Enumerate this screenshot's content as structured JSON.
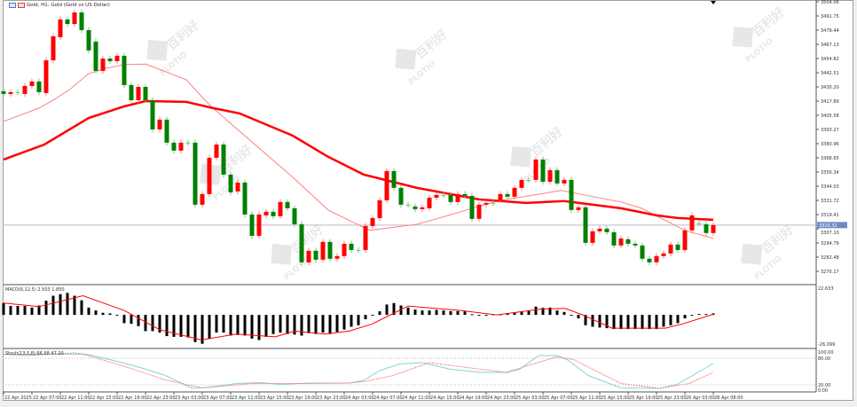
{
  "window": {
    "title": "Gold, H1: Gold (Gold vs US Dollar)",
    "icons": [
      "chart-window-icon",
      "chart-type-icon"
    ]
  },
  "watermark": {
    "brand": "PLOTIO",
    "cn": "百利好"
  },
  "colors": {
    "up": "#ff0000",
    "down": "#008000",
    "ma_fast": "#ff8080",
    "ma_slow": "#ff0000",
    "macd_signal": "#ff0000",
    "stoch_main": "#7fd6d6",
    "stoch_signal": "#ff8080",
    "current_price_bg": "#6f8bc4"
  },
  "price_axis": {
    "labels": [
      "3504.06",
      "3491.75",
      "3479.44",
      "3467.13",
      "3454.82",
      "3442.51",
      "3430.20",
      "3417.89",
      "3405.58",
      "3393.27",
      "3380.96",
      "3368.65",
      "3356.34",
      "3344.03",
      "3331.72",
      "3319.41",
      "3307.10",
      "3294.79",
      "3282.48",
      "3270.17"
    ],
    "current_price": "3310.32"
  },
  "macd": {
    "label": "MACD(6,12,5) 2.503 1.850",
    "axis_top": "22.633",
    "axis_bottom": "-26.099"
  },
  "stoch": {
    "label": "Stoch(13,5,8) 66.68 47.20",
    "axis": [
      "100.00",
      "80.00",
      "20.00",
      "0.00"
    ]
  },
  "time_axis": [
    "22 Apr 2025",
    "22 Apr 07:00",
    "22 Apr 11:00",
    "22 Apr 15:00",
    "22 Apr 19:00",
    "22 Apr 23:00",
    "23 Apr 03:00",
    "23 Apr 07:00",
    "23 Apr 11:00",
    "23 Apr 15:00",
    "23 Apr 19:00",
    "23 Apr 23:00",
    "24 Apr 03:00",
    "24 Apr 07:00",
    "24 Apr 11:00",
    "24 Apr 15:00",
    "24 Apr 19:00",
    "24 Apr 23:00",
    "25 Apr 03:00",
    "25 Apr 07:00",
    "25 Apr 11:00",
    "25 Apr 15:00",
    "25 Apr 19:00",
    "25 Apr 23:00",
    "26 Apr 03:00",
    "28 Apr 08:00"
  ],
  "chart_data": {
    "type": "candlestick",
    "title": "Gold, H1",
    "ylim": [
      3266.5,
      3505.6
    ],
    "candles_open_close": [
      [
        3426.4,
        3424.1
      ],
      [
        3424.1,
        3425.6
      ],
      [
        3425.6,
        3425.6
      ],
      [
        3424.1,
        3431.0
      ],
      [
        3431.0,
        3434.9
      ],
      [
        3434.9,
        3425.6
      ],
      [
        3424.9,
        3453.3
      ],
      [
        3453.3,
        3474.1
      ],
      [
        3473.3,
        3488.7
      ],
      [
        3488.7,
        3484.8
      ],
      [
        3484.8,
        3494.8
      ],
      [
        3494.8,
        3479.5
      ],
      [
        3479.5,
        3461.8
      ],
      [
        3469.5,
        3444.1
      ],
      [
        3444.1,
        3454.8
      ],
      [
        3454.8,
        3452.5
      ],
      [
        3452.5,
        3457.2
      ],
      [
        3457.2,
        3431.8
      ],
      [
        3431.8,
        3418.7
      ],
      [
        3418.7,
        3430.2
      ],
      [
        3430.2,
        3418.7
      ],
      [
        3418.7,
        3393.3
      ],
      [
        3393.3,
        3401.8
      ],
      [
        3401.8,
        3381.8
      ],
      [
        3381.8,
        3374.9
      ],
      [
        3374.9,
        3381.8
      ],
      [
        3381.8,
        3381.8
      ],
      [
        3381.8,
        3328.0
      ],
      [
        3328.0,
        3337.2
      ],
      [
        3337.2,
        3368.7
      ],
      [
        3368.7,
        3380.2
      ],
      [
        3380.2,
        3354.1
      ],
      [
        3354.1,
        3338.7
      ],
      [
        3339.5,
        3347.2
      ],
      [
        3347.2,
        3319.5
      ],
      [
        3319.5,
        3301.0
      ],
      [
        3301.0,
        3319.5
      ],
      [
        3318.7,
        3321.8
      ],
      [
        3321.8,
        3318.0
      ],
      [
        3318.0,
        3330.3
      ],
      [
        3330.3,
        3324.9
      ],
      [
        3324.9,
        3311.0
      ],
      [
        3311.0,
        3278.0
      ],
      [
        3278.0,
        3288.0
      ],
      [
        3288.0,
        3280.3
      ],
      [
        3280.3,
        3295.7
      ],
      [
        3295.7,
        3281.1
      ],
      [
        3281.1,
        3283.4
      ],
      [
        3283.4,
        3294.1
      ],
      [
        3294.1,
        3288.7
      ],
      [
        3288.7,
        3288.7
      ],
      [
        3288.7,
        3309.5
      ],
      [
        3309.5,
        3316.4
      ],
      [
        3316.4,
        3331.8
      ],
      [
        3331.8,
        3357.2
      ],
      [
        3357.2,
        3342.6
      ],
      [
        3342.6,
        3328.0
      ],
      [
        3328.0,
        3328.0
      ],
      [
        3326.4,
        3324.1
      ],
      [
        3324.1,
        3325.7
      ],
      [
        3324.9,
        3334.1
      ],
      [
        3334.1,
        3336.4
      ],
      [
        3336.4,
        3336.4
      ],
      [
        3336.4,
        3330.3
      ],
      [
        3330.3,
        3337.2
      ],
      [
        3337.2,
        3335.6
      ],
      [
        3335.6,
        3315.7
      ],
      [
        3315.7,
        3328.0
      ],
      [
        3328.0,
        3329.5
      ],
      [
        3329.5,
        3329.5
      ],
      [
        3331.8,
        3337.2
      ],
      [
        3337.2,
        3334.9
      ],
      [
        3334.9,
        3342.6
      ],
      [
        3342.6,
        3349.5
      ],
      [
        3349.5,
        3349.5
      ],
      [
        3349.5,
        3367.2
      ],
      [
        3367.2,
        3347.9
      ],
      [
        3347.9,
        3358.0
      ],
      [
        3358.0,
        3346.4
      ],
      [
        3346.4,
        3349.5
      ],
      [
        3349.5,
        3323.4
      ],
      [
        3323.4,
        3325.7
      ],
      [
        3325.7,
        3294.9
      ],
      [
        3294.9,
        3304.9
      ],
      [
        3304.9,
        3307.2
      ],
      [
        3307.2,
        3304.1
      ],
      [
        3304.1,
        3292.6
      ],
      [
        3292.6,
        3298.7
      ],
      [
        3298.0,
        3294.1
      ],
      [
        3294.1,
        3292.6
      ],
      [
        3292.6,
        3281.1
      ],
      [
        3281.1,
        3278.0
      ],
      [
        3278.0,
        3283.4
      ],
      [
        3283.4,
        3285.7
      ],
      [
        3285.7,
        3293.4
      ],
      [
        3293.4,
        3288.7
      ],
      [
        3288.7,
        3305.7
      ],
      [
        3305.7,
        3318.7
      ],
      [
        3311.8,
        3311.8
      ],
      [
        3311.0,
        3303.4
      ],
      [
        3303.4,
        3310.3
      ]
    ],
    "ma_fast": [
      [
        0,
        3400.2
      ],
      [
        5,
        3411.8
      ],
      [
        7,
        3418.7
      ],
      [
        9.5,
        3428.7
      ],
      [
        12,
        3441.8
      ],
      [
        14.5,
        3446.4
      ],
      [
        17,
        3449.5
      ],
      [
        20,
        3450.0
      ],
      [
        25.75,
        3436.4
      ],
      [
        28.25,
        3419.5
      ],
      [
        29.5,
        3411.8
      ],
      [
        40.75,
        3351.8
      ],
      [
        45.75,
        3323.3
      ],
      [
        51.6,
        3305.7
      ],
      [
        58.25,
        3311.0
      ],
      [
        61,
        3315.7
      ],
      [
        69.5,
        3331.1
      ],
      [
        78.6,
        3340.3
      ],
      [
        87,
        3330.3
      ],
      [
        89.9,
        3324.9
      ],
      [
        96,
        3305.7
      ],
      [
        100,
        3298.7
      ]
    ],
    "ma_slow": [
      [
        0,
        3367.2
      ],
      [
        5.75,
        3380.2
      ],
      [
        12,
        3403.3
      ],
      [
        17,
        3413.3
      ],
      [
        20,
        3417.9
      ],
      [
        25.75,
        3417.2
      ],
      [
        29.5,
        3411.8
      ],
      [
        33.25,
        3407.2
      ],
      [
        40.75,
        3387.9
      ],
      [
        45.75,
        3369.5
      ],
      [
        50.75,
        3354.1
      ],
      [
        58.25,
        3342.6
      ],
      [
        67,
        3332.6
      ],
      [
        73.6,
        3329.5
      ],
      [
        79,
        3331.1
      ],
      [
        87,
        3324.9
      ],
      [
        92,
        3318.7
      ],
      [
        95,
        3316.4
      ],
      [
        100,
        3314.9
      ]
    ],
    "macd_hist": [
      9.7,
      7.3,
      7.3,
      7.3,
      6,
      7.7,
      11.6,
      15.7,
      17,
      18,
      15.7,
      12,
      6,
      3.6,
      1.7,
      1.2,
      -0.3,
      -6.8,
      -7.3,
      -9.2,
      -13.3,
      -13.3,
      -14.5,
      -17.4,
      -18,
      -18,
      -18.5,
      -22.3,
      -23.7,
      -19.4,
      -14.5,
      -14.5,
      -17,
      -16.5,
      -17,
      -19.4,
      -20.6,
      -18,
      -15.7,
      -14.5,
      -15.7,
      -16.2,
      -17,
      -15,
      -15.7,
      -14.5,
      -15.7,
      -14,
      -12,
      -9.7,
      -8.5,
      -3.6,
      -0.5,
      2.9,
      8.5,
      9.7,
      7.7,
      6,
      4.4,
      3.6,
      3.6,
      4.1,
      3.6,
      3.1,
      3.1,
      2.9,
      0.5,
      0,
      0,
      0.5,
      0.5,
      1,
      1.9,
      2.9,
      3.6,
      6.8,
      5.8,
      6,
      3.6,
      2.4,
      0,
      -2.9,
      -8.5,
      -9.7,
      -10.4,
      -10.9,
      -11.6,
      -11.6,
      -11.6,
      -11.6,
      -11.6,
      -11.6,
      -11.6,
      -9.7,
      -8.5,
      -6.8,
      -2.9,
      0,
      0.7,
      0.7,
      1.2
    ],
    "macd_signal": [
      [
        0,
        9.7
      ],
      [
        5,
        6.8
      ],
      [
        11.2,
        15.7
      ],
      [
        17,
        3.6
      ],
      [
        22,
        -12.1
      ],
      [
        27.9,
        -20.6
      ],
      [
        32.8,
        -15.7
      ],
      [
        38.3,
        -18
      ],
      [
        41,
        -13.3
      ],
      [
        45.3,
        -15.7
      ],
      [
        48.7,
        -13.3
      ],
      [
        52,
        -7.3
      ],
      [
        54.9,
        1.2
      ],
      [
        57,
        7.3
      ],
      [
        64.5,
        3.6
      ],
      [
        69.5,
        0
      ],
      [
        75.75,
        4.8
      ],
      [
        79.1,
        5.3
      ],
      [
        81.6,
        0
      ],
      [
        85.75,
        -10.9
      ],
      [
        93.25,
        -10.9
      ],
      [
        95.75,
        -7.3
      ],
      [
        100,
        0.5
      ]
    ],
    "macd_ylim": [
      -26.099,
      22.633
    ],
    "stoch_main": [
      [
        0,
        89
      ],
      [
        3.3,
        86
      ],
      [
        10,
        92
      ],
      [
        12,
        88
      ],
      [
        16,
        73
      ],
      [
        19.5,
        58
      ],
      [
        22.8,
        41
      ],
      [
        26.6,
        12
      ],
      [
        28.7,
        14
      ],
      [
        32.8,
        23
      ],
      [
        36.2,
        25
      ],
      [
        39,
        21
      ],
      [
        43,
        24
      ],
      [
        48.7,
        24
      ],
      [
        50.75,
        30
      ],
      [
        53,
        52
      ],
      [
        55.75,
        67
      ],
      [
        59,
        70
      ],
      [
        63,
        55
      ],
      [
        67.4,
        48
      ],
      [
        71,
        48
      ],
      [
        72.7,
        55
      ],
      [
        75.4,
        86
      ],
      [
        78,
        86
      ],
      [
        79.5,
        76
      ],
      [
        82.4,
        41
      ],
      [
        87,
        13
      ],
      [
        92.4,
        12
      ],
      [
        94.9,
        21
      ],
      [
        100,
        68
      ]
    ],
    "stoch_signal": [
      [
        0,
        89
      ],
      [
        11.2,
        89
      ],
      [
        17,
        62
      ],
      [
        22.8,
        31
      ],
      [
        28,
        13
      ],
      [
        35,
        23
      ],
      [
        43,
        23
      ],
      [
        48.7,
        24
      ],
      [
        50.75,
        27
      ],
      [
        54.9,
        41
      ],
      [
        60,
        70
      ],
      [
        70.75,
        48
      ],
      [
        77.9,
        83
      ],
      [
        80.3,
        77
      ],
      [
        87,
        23
      ],
      [
        92.4,
        12
      ],
      [
        96.6,
        23
      ],
      [
        100,
        48
      ]
    ],
    "stoch_levels": [
      80,
      20
    ],
    "stoch_ylim": [
      0,
      100
    ]
  }
}
